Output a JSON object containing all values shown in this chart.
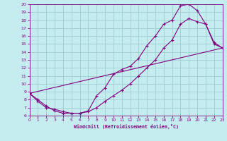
{
  "xlabel": "Windchill (Refroidissement éolien,°C)",
  "bg_color": "#c5ecee",
  "grid_color": "#9ecdd4",
  "line_color": "#800080",
  "x_min": 0,
  "x_max": 23,
  "y_min": 6,
  "y_max": 20,
  "curve1_x": [
    0,
    1,
    2,
    3,
    4,
    5,
    6,
    7,
    8,
    9,
    10,
    11,
    12,
    13,
    14,
    15,
    16,
    17,
    18,
    19,
    20,
    21,
    22,
    23
  ],
  "curve1_y": [
    8.8,
    8.0,
    7.2,
    6.6,
    6.3,
    6.3,
    6.3,
    6.6,
    8.5,
    9.5,
    11.2,
    11.8,
    12.2,
    13.2,
    14.8,
    16.0,
    17.5,
    18.0,
    19.8,
    20.0,
    19.2,
    17.5,
    15.2,
    14.5
  ],
  "curve2_x": [
    0,
    1,
    2,
    3,
    4,
    5,
    6,
    7,
    8,
    9,
    10,
    11,
    12,
    13,
    14,
    15,
    16,
    17,
    18,
    19,
    20,
    21,
    22,
    23
  ],
  "curve2_y": [
    8.8,
    7.8,
    7.0,
    6.8,
    6.5,
    6.3,
    6.3,
    6.5,
    7.0,
    7.8,
    8.5,
    9.2,
    10.0,
    11.0,
    12.0,
    13.0,
    14.5,
    15.5,
    17.5,
    18.2,
    17.8,
    17.5,
    15.0,
    14.5
  ],
  "curve3_x": [
    0,
    23
  ],
  "curve3_y": [
    8.8,
    14.5
  ]
}
